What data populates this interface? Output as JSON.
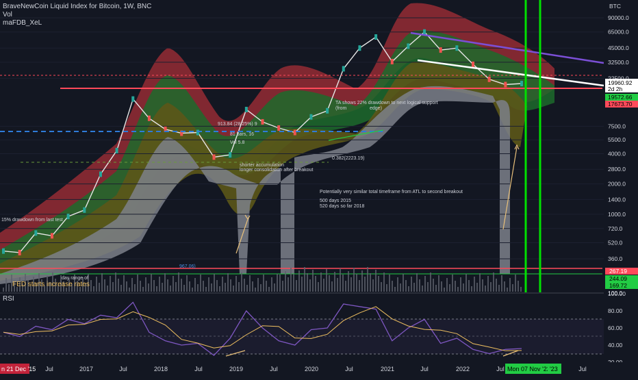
{
  "header": {
    "symbol_line": "BraveNewCoin Liquid Index for Bitcoin, 1W, BNC",
    "vol_label": "Vol",
    "indicator_label": "maFDB_XeL"
  },
  "price_axis": {
    "currency": "BTC",
    "scale": "log",
    "ticks": [
      "90000.0",
      "65000.0",
      "45000.0",
      "32500.0",
      "22500.0",
      "7500.0",
      "5500.0",
      "4000.0",
      "2800.0",
      "2000.0",
      "1400.0",
      "1000.0",
      "720.0",
      "520.0",
      "360.0",
      "100.0"
    ],
    "tick_values": [
      90000,
      65000,
      45000,
      32500,
      22500,
      7500,
      5500,
      4000,
      2800,
      2000,
      1400,
      1000,
      720,
      520,
      360,
      100
    ],
    "badges": {
      "last_price": "19960.92",
      "countdown": "2d 2h",
      "green_upper": "19572.66",
      "red_level": "17673.70",
      "vol_red": "267.19",
      "vol_green": "244.09",
      "vol_green2": "169.72"
    }
  },
  "rsi_axis": {
    "ticks": [
      "100.00",
      "80.00",
      "60.00",
      "40.00",
      "20.00"
    ],
    "tick_values": [
      100,
      80,
      60,
      40,
      20
    ]
  },
  "time_axis": {
    "start_badge": "n 21 Dec '15",
    "labels": [
      "Jul",
      "2017",
      "Jul",
      "2018",
      "Jul",
      "2019",
      "Jul",
      "2020",
      "Jul",
      "2021",
      "Jul",
      "2022",
      "Jul",
      "Jul"
    ],
    "green_badge": "Mon 07 Nov '22",
    "green_badge2": "'23"
  },
  "rsi": {
    "label": "RSI"
  },
  "annotations": {
    "drawdown_15": "15% drawdown from last test",
    "fed_note": "FED starts increase rates",
    "fib_913": "913.84 (28.25%) 9",
    "bars_note": "81 bars, 16",
    "vol_note": "Vol 5.8",
    "shorter_acc": "shorter accumulation",
    "longer_cons": "longer consolidation after breakout",
    "ta_note1": "TA shows 22% drawdown to next logical support",
    "ta_note2": "(from ",
    "ta_note3": "edge)",
    "fib_382": "0.382(2223.19)",
    "potential": "Potentially very similar total timeframe from ATL to second breakout",
    "days_2015": "500 days 2015",
    "days_2018": "520 days so far 2018",
    "vol_measure": "967.06)",
    "small_note": "day range of"
  },
  "colors": {
    "background": "#131722",
    "candle_up": "#26a69a",
    "candle_down": "#ef5350",
    "band_red": "#b2323a",
    "band_green": "#1e7a2a",
    "band_olive": "#6f6a1e",
    "band_gray": "#8a8d96",
    "rsi_line": "#7e57c2",
    "rsi_ma": "#f0c060",
    "green_vline": "#00e000",
    "red_hline": "#ff4a5a",
    "blue_dash": "#2e7bd9",
    "white_line": "#ffffff"
  },
  "chart_data": [
    {
      "type": "line",
      "title": "BraveNewCoin Liquid Index for Bitcoin, 1W, BNC",
      "y_scale": "log",
      "xlabel": "",
      "ylabel": "",
      "x": [
        "2015-12",
        "2016-03",
        "2016-06",
        "2016-09",
        "2016-12",
        "2017-03",
        "2017-06",
        "2017-09",
        "2017-12",
        "2018-02",
        "2018-04",
        "2018-06",
        "2018-09",
        "2018-12",
        "2019-03",
        "2019-06",
        "2019-09",
        "2019-12",
        "2020-03",
        "2020-06",
        "2020-09",
        "2020-12",
        "2021-02",
        "2021-04",
        "2021-07",
        "2021-09",
        "2021-11",
        "2022-01",
        "2022-03",
        "2022-05",
        "2022-07",
        "2022-09",
        "2022-11"
      ],
      "series": [
        {
          "values": [
            430,
            415,
            650,
            610,
            950,
            1100,
            2500,
            4300,
            14000,
            9000,
            7000,
            6400,
            6500,
            3700,
            3900,
            11000,
            8300,
            7200,
            6500,
            9300,
            10700,
            28000,
            45000,
            58000,
            33000,
            47000,
            65000,
            43000,
            45000,
            31000,
            22000,
            19500,
            19960
          ]
        }
      ],
      "price_levels": [
        {
          "label": "red support",
          "value": 19000
        },
        {
          "label": "blue dashed upper",
          "value": 6000
        },
        {
          "label": "blue dashed lower",
          "value": 3100
        }
      ]
    },
    {
      "type": "line",
      "title": "RSI",
      "ylim": [
        20,
        100
      ],
      "series": [
        {
          "values": [
            55,
            50,
            62,
            58,
            70,
            65,
            75,
            72,
            90,
            55,
            45,
            40,
            42,
            28,
            48,
            80,
            60,
            45,
            40,
            58,
            60,
            88,
            85,
            82,
            45,
            60,
            70,
            42,
            48,
            35,
            30,
            35,
            36
          ]
        }
      ],
      "levels": [
        70,
        50,
        30
      ]
    }
  ]
}
